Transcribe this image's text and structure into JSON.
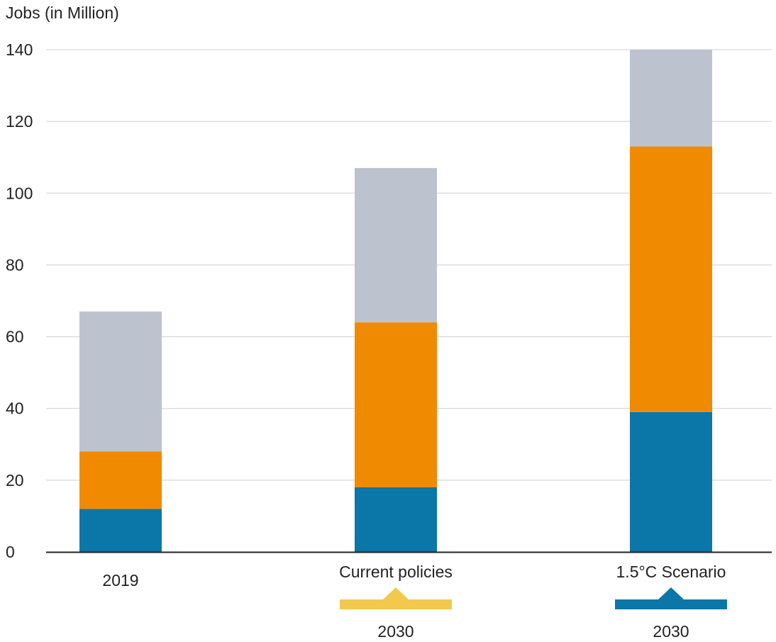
{
  "chart_data": {
    "type": "bar",
    "stacked": true,
    "title": "",
    "ylabel": "Jobs (in Million)",
    "ylim": [
      0,
      140
    ],
    "yticks": [
      "0",
      "20",
      "40",
      "60",
      "80",
      "100",
      "120",
      "140"
    ],
    "grid": true,
    "categories": [
      "2019",
      "Current policies",
      "1.5°C Scenario"
    ],
    "group_labels": [
      {
        "label": "2030",
        "categories": [
          "Current policies",
          "1.5°C Scenario"
        ],
        "marker_color": [
          "#F2C94C",
          "#0B76A8"
        ]
      }
    ],
    "series": [
      {
        "color": "#0B76A8",
        "values": [
          12,
          18,
          39
        ]
      },
      {
        "color": "#F08A00",
        "values": [
          16,
          46,
          74
        ]
      },
      {
        "color": "#BCC3CE",
        "values": [
          39,
          43,
          27
        ]
      }
    ]
  },
  "colors": {
    "grid": "#d9d9d9",
    "axis": "#222222",
    "text": "#222222"
  }
}
